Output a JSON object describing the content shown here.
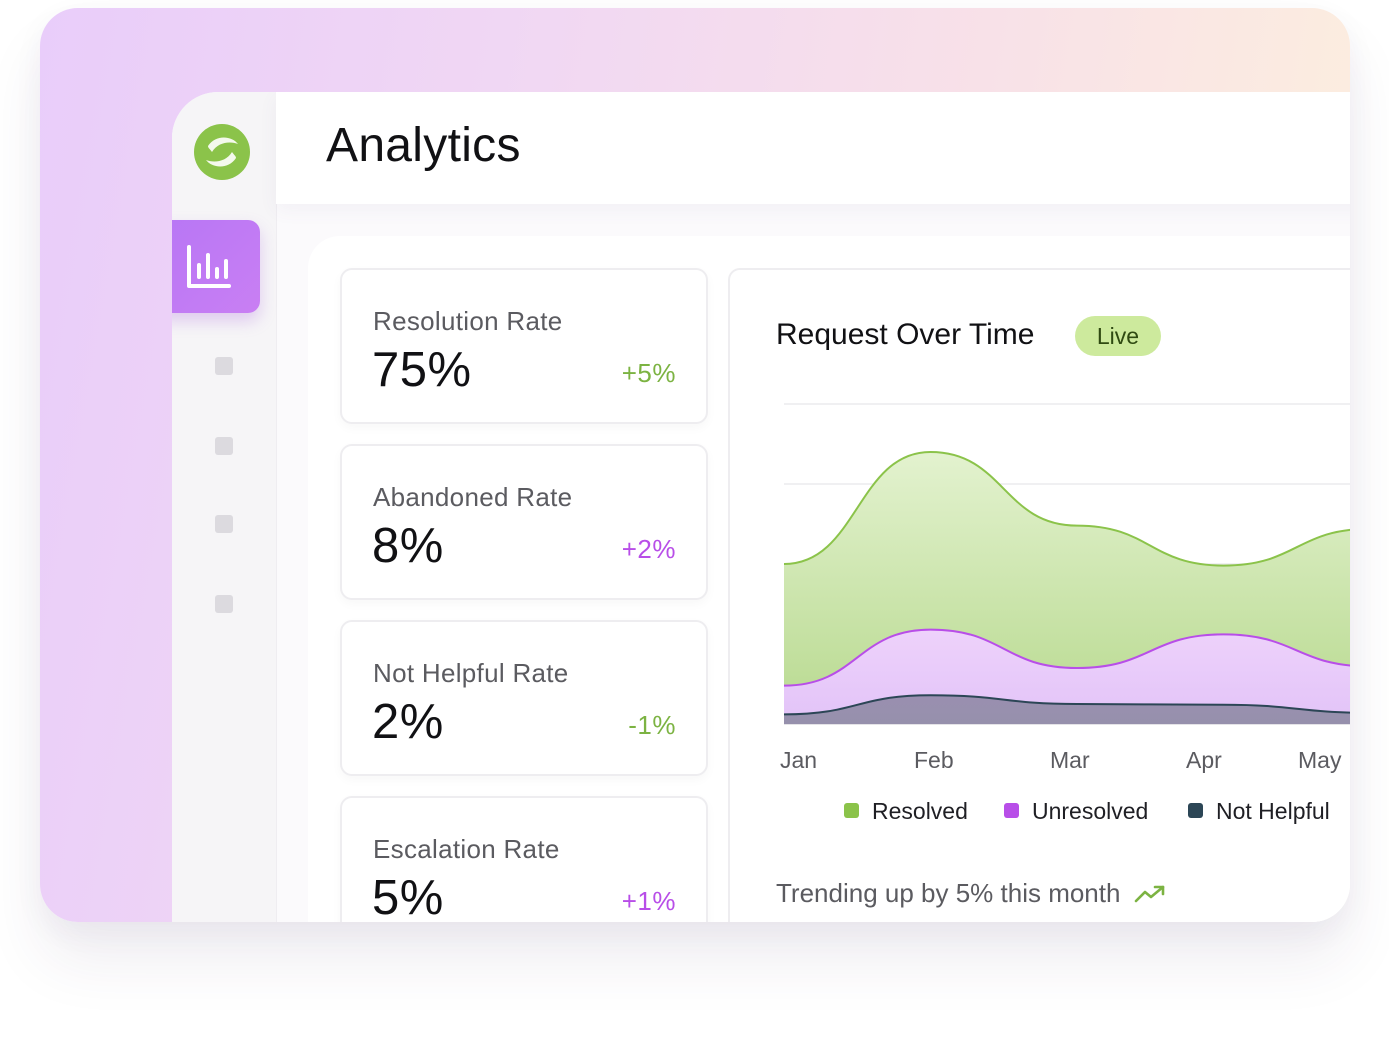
{
  "header": {
    "title": "Analytics"
  },
  "sidebar": {
    "logo_icon": "leaf-logo-icon",
    "active_item_icon": "bar-chart-icon",
    "items": [
      {
        "icon": "nav-placeholder-icon"
      },
      {
        "icon": "nav-placeholder-icon"
      },
      {
        "icon": "nav-placeholder-icon"
      },
      {
        "icon": "nav-placeholder-icon"
      }
    ]
  },
  "stats": [
    {
      "label": "Resolution Rate",
      "value": "75%",
      "delta": "+5%",
      "delta_color": "#7cb342"
    },
    {
      "label": "Abandoned Rate",
      "value": "8%",
      "delta": "+2%",
      "delta_color": "#b84ee8"
    },
    {
      "label": "Not Helpful Rate",
      "value": "2%",
      "delta": "-1%",
      "delta_color": "#7cb342"
    },
    {
      "label": "Escalation Rate",
      "value": "5%",
      "delta": "+1%",
      "delta_color": "#b84ee8"
    }
  ],
  "chart_panel": {
    "title": "Request Over Time",
    "badge": "Live",
    "footer": "Trending up by 5% this month",
    "footer_icon": "trending-up-icon"
  },
  "chart_data": {
    "type": "area",
    "categories": [
      "Jan",
      "Feb",
      "Mar",
      "Apr",
      "May"
    ],
    "series": [
      {
        "name": "Resolved",
        "color": "#8bc34a",
        "values": [
          200,
          340,
          248,
          198,
          244
        ]
      },
      {
        "name": "Unresolved",
        "color": "#b84ee8",
        "values": [
          48,
          118,
          70,
          112,
          72
        ]
      },
      {
        "name": "Not Helpful",
        "color": "#2c4656",
        "values": [
          12,
          36,
          25,
          24,
          14
        ]
      }
    ],
    "ylim": [
      0,
      400
    ],
    "grid": true,
    "legend_position": "bottom"
  },
  "colors": {
    "accent": "#b776f5",
    "live_badge": "#cdea9d"
  }
}
